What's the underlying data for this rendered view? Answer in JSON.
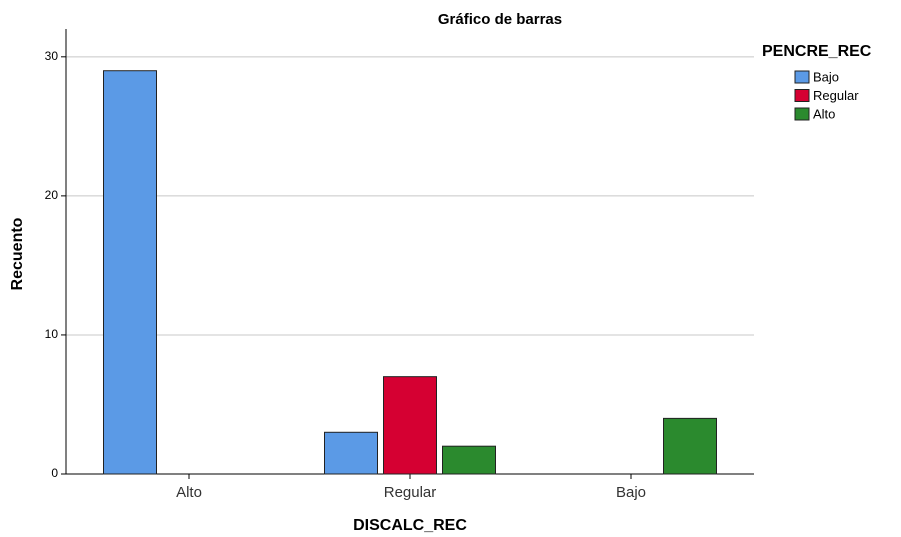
{
  "chart_data": {
    "type": "bar",
    "title": "Gráfico de barras",
    "x_label": "DISCALC_REC",
    "y_label": "Recuento",
    "legend_title": "PENCRE_REC",
    "legend_position": "right",
    "categories": [
      "Alto",
      "Regular",
      "Bajo"
    ],
    "series": [
      {
        "name": "Bajo",
        "color": "#5b9ae6",
        "values": [
          29,
          3,
          0
        ]
      },
      {
        "name": "Regular",
        "color": "#d50032",
        "values": [
          0,
          7,
          0
        ]
      },
      {
        "name": "Alto",
        "color": "#2b8a2e",
        "values": [
          0,
          2,
          4
        ]
      }
    ],
    "ylim": [
      0,
      32
    ],
    "yticks": [
      0,
      10,
      20,
      30
    ],
    "grid": true
  }
}
